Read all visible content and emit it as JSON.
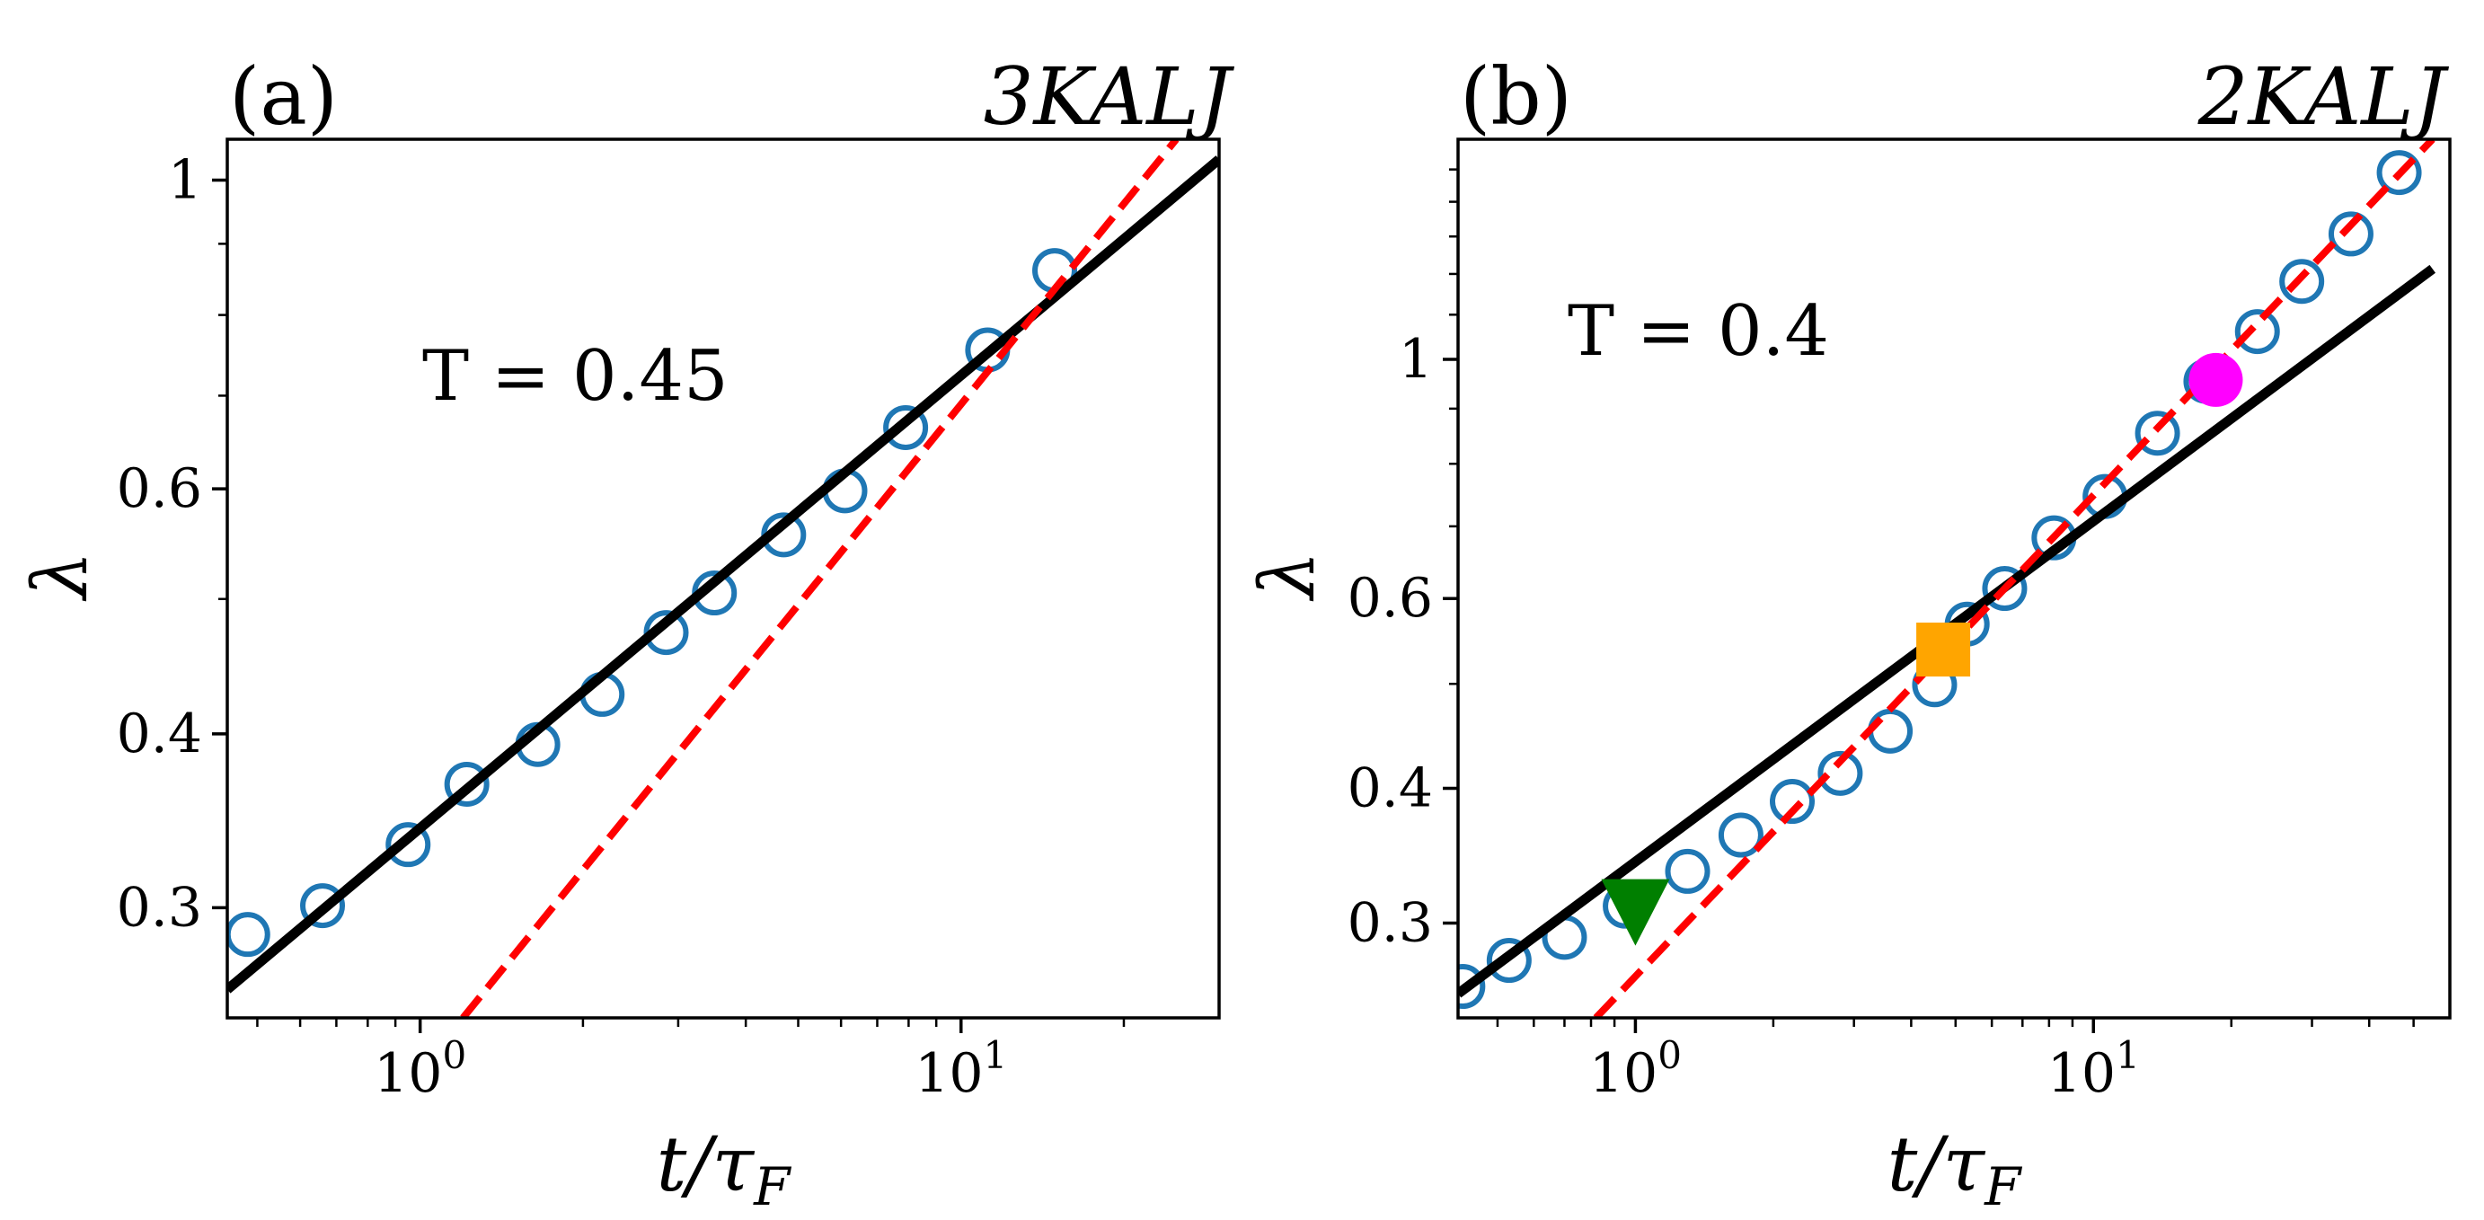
{
  "chart_data": [
    {
      "type": "scatter",
      "panel_label": "(a)",
      "system": "3KALJ",
      "annotation": "T = 0.45",
      "xlabel": "t/τ_F",
      "ylabel": "λ",
      "xscale": "log",
      "yscale": "log",
      "xlim": [
        0.44,
        30
      ],
      "ylim": [
        0.25,
        1.07
      ],
      "x_tick_labels": [
        "10^0",
        "10^1"
      ],
      "x_tick_values": [
        1,
        10
      ],
      "y_tick_labels": [
        "0.3",
        "0.4",
        "0.6",
        "1"
      ],
      "y_tick_values": [
        0.3,
        0.4,
        0.6,
        1.0
      ],
      "series": [
        {
          "name": "data",
          "style": "open-circle",
          "color": "#1f77b4",
          "x": [
            0.48,
            0.66,
            0.95,
            1.22,
            1.65,
            2.17,
            2.85,
            3.5,
            4.7,
            6.1,
            7.9,
            11.2,
            14.9
          ],
          "y": [
            0.287,
            0.301,
            0.333,
            0.368,
            0.393,
            0.427,
            0.473,
            0.505,
            0.556,
            0.598,
            0.664,
            0.755,
            0.861
          ]
        },
        {
          "name": "solid-fit",
          "style": "line",
          "color": "#000000",
          "x": [
            0.44,
            30
          ],
          "y": [
            0.262,
            1.035
          ]
        },
        {
          "name": "dashed-fit",
          "style": "dashed",
          "color": "#ff0000",
          "x": [
            1.2,
            25
          ],
          "y": [
            0.25,
            1.07
          ]
        }
      ]
    },
    {
      "type": "scatter",
      "panel_label": "(b)",
      "system": "2KALJ",
      "annotation": "T = 0.4",
      "xlabel": "t/τ_F",
      "ylabel": "λ",
      "xscale": "log",
      "yscale": "log",
      "xlim": [
        0.41,
        60
      ],
      "ylim": [
        0.245,
        1.6
      ],
      "x_tick_labels": [
        "10^0",
        "10^1"
      ],
      "x_tick_values": [
        1,
        10
      ],
      "y_tick_labels": [
        "0.3",
        "0.4",
        "0.6",
        "1"
      ],
      "y_tick_values": [
        0.3,
        0.4,
        0.6,
        1.0
      ],
      "series": [
        {
          "name": "data",
          "style": "open-circle",
          "color": "#1f77b4",
          "x": [
            0.42,
            0.53,
            0.7,
            0.95,
            1.3,
            1.7,
            2.2,
            2.8,
            3.6,
            4.5,
            5.3,
            6.4,
            8.2,
            10.6,
            13.8,
            17.6,
            22.8,
            28.5,
            36.5,
            46.5
          ],
          "y": [
            0.262,
            0.277,
            0.291,
            0.311,
            0.335,
            0.362,
            0.389,
            0.413,
            0.452,
            0.499,
            0.568,
            0.613,
            0.683,
            0.746,
            0.854,
            0.954,
            1.061,
            1.181,
            1.307,
            1.49
          ]
        },
        {
          "name": "solid-fit",
          "style": "line",
          "color": "#000000",
          "x": [
            0.41,
            55
          ],
          "y": [
            0.258,
            1.213
          ]
        },
        {
          "name": "dashed-fit",
          "style": "dashed",
          "color": "#ff0000",
          "x": [
            0.82,
            55
          ],
          "y": [
            0.245,
            1.6
          ]
        },
        {
          "name": "triangle-marker",
          "style": "down-triangle",
          "color": "#007f00",
          "x": [
            1.0
          ],
          "y": [
            0.311
          ]
        },
        {
          "name": "square-marker",
          "style": "square",
          "color": "#ffa500",
          "x": [
            4.7
          ],
          "y": [
            0.538
          ]
        },
        {
          "name": "circle-marker",
          "style": "filled-circle",
          "color": "#ff00ff",
          "x": [
            18.5
          ],
          "y": [
            0.957
          ]
        }
      ]
    }
  ]
}
